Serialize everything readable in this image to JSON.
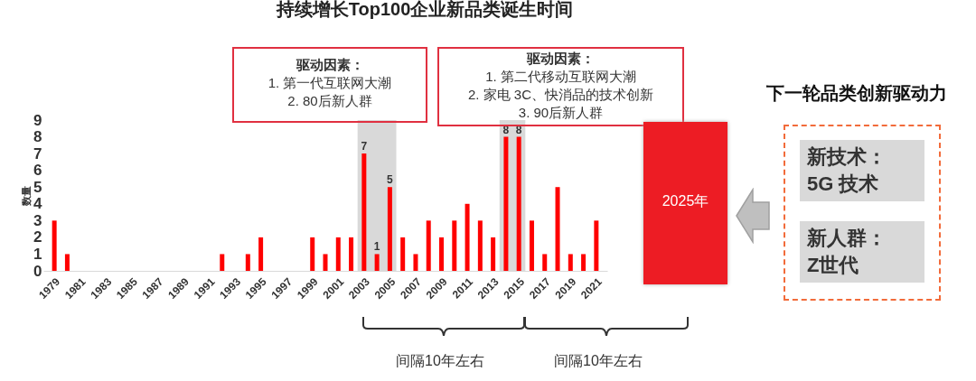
{
  "chart_data": {
    "type": "bar",
    "title": "持续增长Top100企业新品类诞生时间",
    "ylabel": "数量",
    "x": [
      1979,
      1980,
      1981,
      1982,
      1983,
      1984,
      1985,
      1986,
      1987,
      1988,
      1989,
      1990,
      1991,
      1992,
      1993,
      1994,
      1995,
      1996,
      1997,
      1998,
      1999,
      2000,
      2001,
      2002,
      2003,
      2004,
      2005,
      2006,
      2007,
      2008,
      2009,
      2010,
      2011,
      2012,
      2013,
      2014,
      2015,
      2016,
      2017,
      2018,
      2019,
      2020,
      2021
    ],
    "values": [
      3,
      1,
      0,
      0,
      0,
      0,
      0,
      0,
      0,
      0,
      0,
      0,
      0,
      1,
      0,
      1,
      2,
      0,
      0,
      0,
      2,
      1,
      2,
      2,
      7,
      1,
      5,
      2,
      1,
      3,
      2,
      3,
      4,
      3,
      2,
      8,
      8,
      3,
      1,
      5,
      1,
      1,
      3
    ],
    "value_labels": [
      null,
      null,
      null,
      null,
      null,
      null,
      null,
      null,
      null,
      null,
      null,
      null,
      null,
      null,
      null,
      null,
      null,
      null,
      null,
      null,
      null,
      null,
      null,
      null,
      "7",
      "1",
      "5",
      null,
      null,
      null,
      null,
      null,
      null,
      null,
      null,
      "8",
      "8",
      null,
      null,
      null,
      null,
      null,
      null
    ],
    "color": "#ff0000",
    "xlim": [
      1978.5,
      2021.5
    ],
    "xticks": [
      1979,
      1981,
      1983,
      1985,
      1987,
      1989,
      1991,
      1993,
      1995,
      1997,
      1999,
      2001,
      2003,
      2005,
      2007,
      2009,
      2011,
      2013,
      2015,
      2017,
      2019,
      2021
    ],
    "ylim": [
      0,
      9
    ],
    "yticks": [
      0,
      1,
      2,
      3,
      4,
      5,
      6,
      7,
      8,
      9
    ],
    "bands": [
      {
        "axis": "x",
        "from": 2002.5,
        "to": 2005.5,
        "color": "#d9d9d9"
      },
      {
        "axis": "x",
        "from": 2013.5,
        "to": 2015.5,
        "color": "#d9d9d9"
      }
    ],
    "annotations": [
      "驱动因素：\n1. 第一代互联网大潮\n2. 80后新人群",
      "驱动因素：\n1. 第二代移动互联网大潮\n2. 家电 3C、快消品的技术创新\n3. 90后新人群",
      "2025年",
      "下一轮品类创新驱动力",
      "新技术：\n5G 技术",
      "新人群：\nZ世代",
      "间隔10年左右",
      "间隔10年左右"
    ]
  }
}
